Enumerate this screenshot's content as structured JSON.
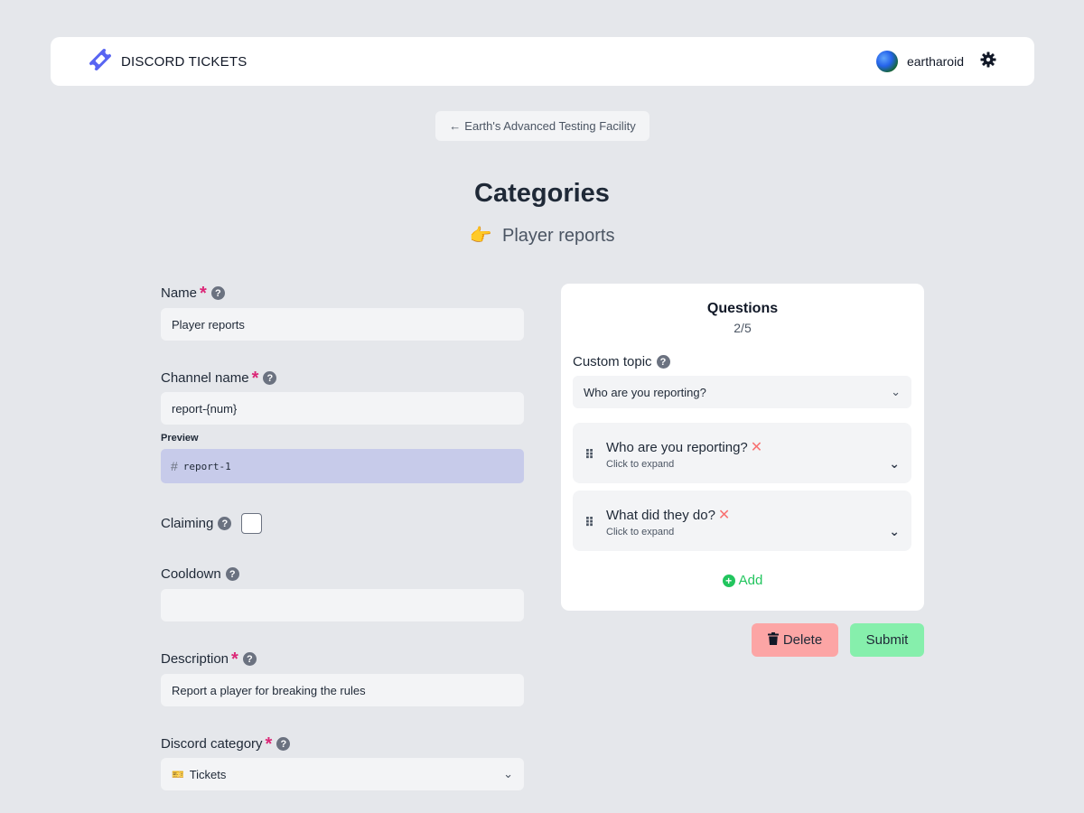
{
  "navbar": {
    "brand": "DISCORD TICKETS",
    "username": "eartharoid"
  },
  "back_button": {
    "label": "Earth's Advanced Testing Facility"
  },
  "page": {
    "title": "Categories",
    "subtitle_emoji": "👉",
    "subtitle": "Player reports"
  },
  "form": {
    "name": {
      "label": "Name",
      "value": "Player reports"
    },
    "channel_name": {
      "label": "Channel name",
      "value": "report-{num}"
    },
    "preview": {
      "label": "Preview",
      "value": "report-1"
    },
    "claiming": {
      "label": "Claiming",
      "checked": false
    },
    "cooldown": {
      "label": "Cooldown",
      "value": ""
    },
    "description": {
      "label": "Description",
      "value": "Report a player for breaking the rules"
    },
    "discord_category": {
      "label": "Discord category",
      "emoji": "🎫",
      "value": "Tickets"
    }
  },
  "questions": {
    "title": "Questions",
    "count": "2/5",
    "custom_topic_label": "Custom topic",
    "custom_topic_value": "Who are you reporting?",
    "items": [
      {
        "title": "Who are you reporting?",
        "hint": "Click to expand"
      },
      {
        "title": "What did they do?",
        "hint": "Click to expand"
      }
    ],
    "add_label": "Add"
  },
  "actions": {
    "delete_label": "Delete",
    "submit_label": "Submit"
  },
  "colors": {
    "background": "#e5e7eb",
    "required": "#db2777",
    "preview_bg": "#c7cbea",
    "delete": "#fca5a5",
    "submit": "#86efac",
    "add": "#22c55e"
  }
}
